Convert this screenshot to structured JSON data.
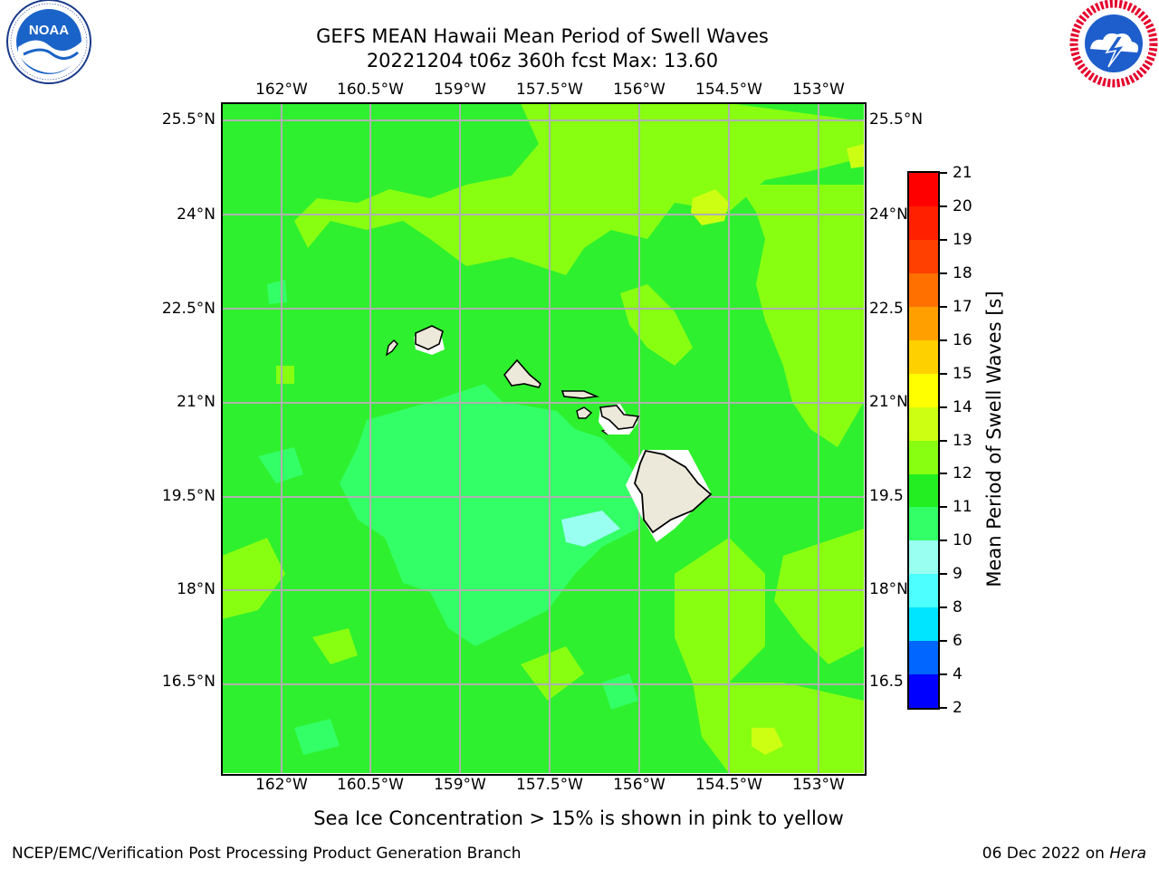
{
  "title": {
    "line1": "GEFS MEAN Hawaii Mean Period of Swell Waves",
    "line2": "20221204 t06z 360h fcst   Max: 13.60"
  },
  "logos": {
    "left": {
      "name": "noaa-logo",
      "text": "NOAA",
      "ring_text": "NATIONAL OCEANIC AND ATMOSPHERIC ADMINISTRATION · U.S. DEPARTMENT OF COMMERCE"
    },
    "right": {
      "name": "nws-logo",
      "ring_text": "NATIONAL WEATHER SERVICE"
    }
  },
  "map": {
    "lon_labels": [
      "162°W",
      "160.5°W",
      "159°W",
      "157.5°W",
      "156°W",
      "154.5°W",
      "153°W"
    ],
    "lat_labels": [
      "25.5°N",
      "24°N",
      "22.5°N",
      "21°N",
      "19.5°N",
      "18°N",
      "16.5°N"
    ],
    "lat_labels_right": [
      "25.5°N",
      "24°N",
      "22.5",
      "21°N",
      "19.5",
      "18°N",
      "16.5"
    ],
    "dominant_fill": "#2ef02e",
    "land_color": "#ede9da",
    "grid_color": "#b0b0b0"
  },
  "colorbar": {
    "title": "Mean Period of Swell Waves [s]",
    "levels": [
      "2",
      "4",
      "6",
      "8",
      "9",
      "10",
      "11",
      "12",
      "13",
      "14",
      "15",
      "16",
      "17",
      "18",
      "19",
      "20",
      "21"
    ],
    "colors": [
      "#0000ff",
      "#0066ff",
      "#00e5ff",
      "#4dffff",
      "#99fff0",
      "#33ff66",
      "#22ee22",
      "#88ff11",
      "#ccff11",
      "#ffff00",
      "#ffd000",
      "#ffa000",
      "#ff7000",
      "#ff4000",
      "#ff2000",
      "#ff0000"
    ]
  },
  "note": "Sea Ice Concentration > 15% is shown in pink to yellow",
  "footer": {
    "left": "NCEP/EMC/Verification Post Processing Product Generation Branch",
    "date": "06 Dec 2022 on ",
    "host": "Hera"
  }
}
